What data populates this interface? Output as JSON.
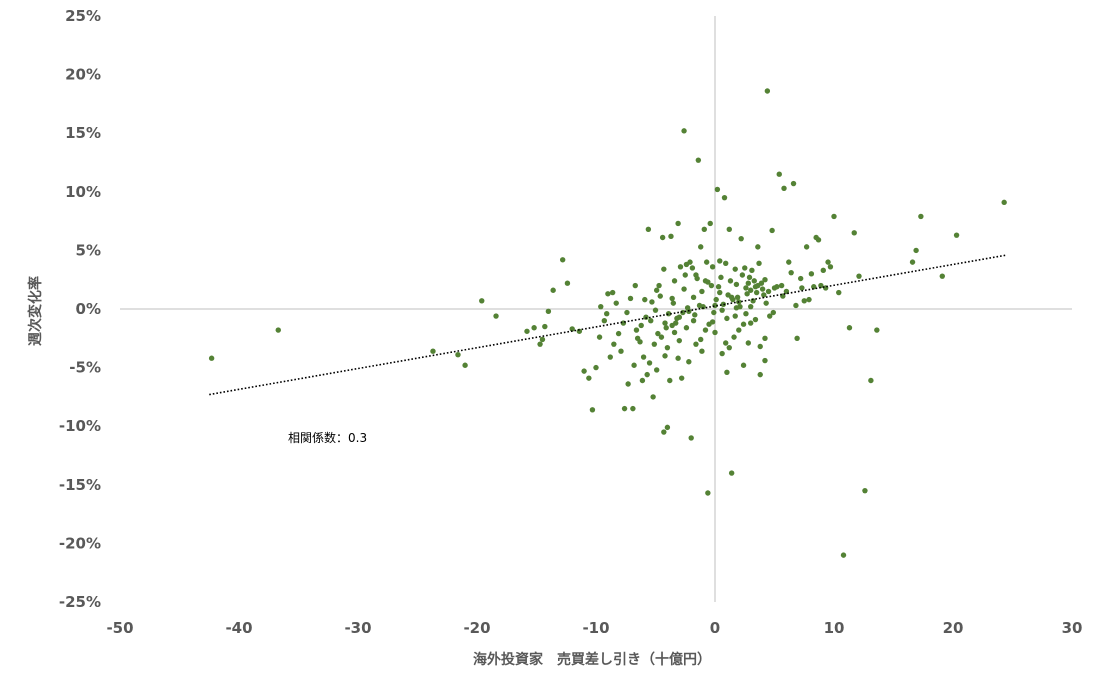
{
  "chart_data": {
    "type": "scatter",
    "title": "",
    "xlabel": "海外投資家　売買差し引き（十億円）",
    "ylabel": "週次変化率",
    "xlim": [
      -50,
      30
    ],
    "ylim": [
      -25,
      25
    ],
    "x_ticks": [
      "-50",
      "-40",
      "-30",
      "-20",
      "-10",
      "0",
      "10",
      "20",
      "30"
    ],
    "y_ticks": [
      "25%",
      "20%",
      "15%",
      "10%",
      "5%",
      "0%",
      "-5%",
      "-10%",
      "-15%",
      "-20%",
      "-25%"
    ],
    "grid": false,
    "legend": "none",
    "point_color": "#548235",
    "axis_color": "#bfbfbf",
    "trendline": {
      "style": "dotted",
      "color": "#000000",
      "from": [
        -42.5,
        -7.3
      ],
      "to": [
        24.5,
        4.6
      ]
    },
    "annotation": "相関係数：0.3",
    "points": [
      [
        -42.3,
        -4.2
      ],
      [
        -36.7,
        -1.8
      ],
      [
        -23.7,
        -3.6
      ],
      [
        -21.6,
        -3.9
      ],
      [
        -21.0,
        -4.8
      ],
      [
        -19.6,
        0.7
      ],
      [
        -18.4,
        -0.6
      ],
      [
        -15.8,
        -1.9
      ],
      [
        -15.2,
        -1.6
      ],
      [
        -14.7,
        -3.0
      ],
      [
        -14.5,
        -2.6
      ],
      [
        -14.3,
        -1.5
      ],
      [
        -14.0,
        -0.2
      ],
      [
        -13.6,
        1.6
      ],
      [
        -12.8,
        4.2
      ],
      [
        -12.4,
        2.2
      ],
      [
        -12.0,
        -1.7
      ],
      [
        -11.4,
        -1.9
      ],
      [
        -11.0,
        -5.3
      ],
      [
        -10.6,
        -5.9
      ],
      [
        -10.3,
        -8.6
      ],
      [
        -10.0,
        -5.0
      ],
      [
        -9.7,
        -2.4
      ],
      [
        -9.3,
        -1.0
      ],
      [
        -9.0,
        1.3
      ],
      [
        -8.8,
        -4.1
      ],
      [
        -8.6,
        1.4
      ],
      [
        -8.3,
        0.5
      ],
      [
        -7.9,
        -3.6
      ],
      [
        -7.6,
        -8.5
      ],
      [
        -7.3,
        -6.4
      ],
      [
        -6.9,
        -8.5
      ],
      [
        -6.7,
        2.0
      ],
      [
        -6.5,
        -2.5
      ],
      [
        -6.2,
        -1.4
      ],
      [
        -6.0,
        -4.1
      ],
      [
        -5.7,
        -5.6
      ],
      [
        -5.5,
        -4.6
      ],
      [
        -5.3,
        0.6
      ],
      [
        -5.1,
        -3.0
      ],
      [
        -4.9,
        -5.2
      ],
      [
        -4.7,
        2.0
      ],
      [
        -4.5,
        -2.4
      ],
      [
        -4.3,
        -10.5
      ],
      [
        -4.2,
        -4.0
      ],
      [
        -4.0,
        -10.1
      ],
      [
        -3.8,
        -6.1
      ],
      [
        -3.6,
        -1.4
      ],
      [
        -3.4,
        -2.0
      ],
      [
        -3.2,
        -0.8
      ],
      [
        -3.0,
        -2.7
      ],
      [
        -2.8,
        -5.9
      ],
      [
        -2.6,
        15.2
      ],
      [
        -2.4,
        3.8
      ],
      [
        -2.2,
        -0.2
      ],
      [
        -2.0,
        -11.0
      ],
      [
        -1.8,
        -1.0
      ],
      [
        -1.6,
        -3.0
      ],
      [
        -1.4,
        12.7
      ],
      [
        -1.2,
        5.3
      ],
      [
        -1.0,
        0.2
      ],
      [
        -0.8,
        -1.8
      ],
      [
        -0.6,
        -15.7
      ],
      [
        -0.4,
        7.3
      ],
      [
        -0.2,
        3.6
      ],
      [
        0.0,
        -2.0
      ],
      [
        0.2,
        10.2
      ],
      [
        0.4,
        1.4
      ],
      [
        0.6,
        -0.1
      ],
      [
        0.8,
        9.5
      ],
      [
        1.0,
        -5.4
      ],
      [
        1.2,
        6.8
      ],
      [
        1.4,
        -14.0
      ],
      [
        1.6,
        -2.4
      ],
      [
        1.8,
        2.1
      ],
      [
        2.0,
        0.6
      ],
      [
        2.2,
        6.0
      ],
      [
        2.4,
        -4.8
      ],
      [
        2.6,
        1.8
      ],
      [
        2.8,
        2.2
      ],
      [
        3.0,
        -1.2
      ],
      [
        3.2,
        0.7
      ],
      [
        3.4,
        1.9
      ],
      [
        3.6,
        5.3
      ],
      [
        3.8,
        -5.6
      ],
      [
        4.0,
        1.7
      ],
      [
        4.2,
        2.5
      ],
      [
        4.4,
        18.6
      ],
      [
        4.6,
        -0.6
      ],
      [
        4.8,
        6.7
      ],
      [
        5.0,
        1.8
      ],
      [
        5.4,
        11.5
      ],
      [
        5.8,
        10.3
      ],
      [
        6.2,
        4.0
      ],
      [
        6.6,
        10.7
      ],
      [
        6.9,
        -2.5
      ],
      [
        7.3,
        1.8
      ],
      [
        7.7,
        5.3
      ],
      [
        8.1,
        3.0
      ],
      [
        8.5,
        6.1
      ],
      [
        8.9,
        2.0
      ],
      [
        9.3,
        1.8
      ],
      [
        9.7,
        3.6
      ],
      [
        10.0,
        7.9
      ],
      [
        10.4,
        1.4
      ],
      [
        10.8,
        -21.0
      ],
      [
        11.3,
        -1.6
      ],
      [
        11.7,
        6.5
      ],
      [
        12.1,
        2.8
      ],
      [
        12.6,
        -15.5
      ],
      [
        13.1,
        -6.1
      ],
      [
        13.6,
        -1.8
      ],
      [
        16.6,
        4.0
      ],
      [
        16.9,
        5.0
      ],
      [
        17.3,
        7.9
      ],
      [
        19.1,
        2.8
      ],
      [
        20.3,
        6.3
      ],
      [
        24.3,
        9.1
      ],
      [
        -5.6,
        6.8
      ],
      [
        -4.4,
        6.1
      ],
      [
        -3.7,
        6.2
      ],
      [
        -3.1,
        7.3
      ],
      [
        -2.9,
        3.6
      ],
      [
        -2.5,
        2.9
      ],
      [
        -2.1,
        4.0
      ],
      [
        -1.9,
        3.5
      ],
      [
        -1.5,
        2.6
      ],
      [
        -1.1,
        1.5
      ],
      [
        -0.9,
        6.8
      ],
      [
        -0.7,
        4.0
      ],
      [
        -0.3,
        2.0
      ],
      [
        0.3,
        1.9
      ],
      [
        0.5,
        2.7
      ],
      [
        0.9,
        3.9
      ],
      [
        1.1,
        1.2
      ],
      [
        1.3,
        2.4
      ],
      [
        1.5,
        0.8
      ],
      [
        1.7,
        3.4
      ],
      [
        1.9,
        1.0
      ],
      [
        2.1,
        0.2
      ],
      [
        2.3,
        2.9
      ],
      [
        2.5,
        3.5
      ],
      [
        2.7,
        1.3
      ],
      [
        2.9,
        2.7
      ],
      [
        3.1,
        3.3
      ],
      [
        3.3,
        2.4
      ],
      [
        3.5,
        1.4
      ],
      [
        3.7,
        3.9
      ],
      [
        3.9,
        2.2
      ],
      [
        4.1,
        1.2
      ],
      [
        4.3,
        0.5
      ],
      [
        4.5,
        1.5
      ],
      [
        5.2,
        1.9
      ],
      [
        5.6,
        2.0
      ],
      [
        6.0,
        1.5
      ],
      [
        6.4,
        3.1
      ],
      [
        6.8,
        0.3
      ],
      [
        7.2,
        2.6
      ],
      [
        7.5,
        0.7
      ],
      [
        7.9,
        0.8
      ],
      [
        8.3,
        1.9
      ],
      [
        8.7,
        5.9
      ],
      [
        9.1,
        3.3
      ],
      [
        9.5,
        4.0
      ],
      [
        -9.6,
        0.2
      ],
      [
        -9.1,
        -0.4
      ],
      [
        -8.5,
        -3.0
      ],
      [
        -8.1,
        -2.1
      ],
      [
        -7.7,
        -1.2
      ],
      [
        -7.1,
        0.9
      ],
      [
        -6.8,
        -4.8
      ],
      [
        -6.3,
        -2.8
      ],
      [
        -5.9,
        0.8
      ],
      [
        -5.4,
        -1.0
      ],
      [
        -5.0,
        -0.1
      ],
      [
        -4.8,
        -2.1
      ],
      [
        -4.6,
        1.1
      ],
      [
        -4.1,
        -1.6
      ],
      [
        -3.9,
        -0.4
      ],
      [
        -3.5,
        0.5
      ],
      [
        -3.3,
        -1.2
      ],
      [
        -2.7,
        -0.3
      ],
      [
        -2.3,
        0.1
      ],
      [
        -1.7,
        -0.5
      ],
      [
        -1.3,
        0.3
      ],
      [
        -0.5,
        -1.3
      ],
      [
        -0.1,
        -0.3
      ],
      [
        0.1,
        0.8
      ],
      [
        0.7,
        0.4
      ],
      [
        1.0,
        -0.8
      ],
      [
        1.4,
        1.0
      ],
      [
        2.0,
        -1.8
      ],
      [
        2.6,
        -0.4
      ],
      [
        3.0,
        0.2
      ],
      [
        3.4,
        -0.9
      ],
      [
        3.8,
        -3.2
      ],
      [
        4.2,
        -2.5
      ],
      [
        4.9,
        -0.3
      ],
      [
        5.7,
        1.1
      ],
      [
        -4.2,
        -1.2
      ],
      [
        -3.6,
        0.9
      ],
      [
        -3.0,
        -0.7
      ],
      [
        -2.4,
        -1.6
      ],
      [
        -1.8,
        1.0
      ],
      [
        -1.2,
        -2.6
      ],
      [
        -0.6,
        2.3
      ],
      [
        0.0,
        0.3
      ],
      [
        0.6,
        -3.8
      ],
      [
        1.2,
        -3.3
      ],
      [
        1.8,
        0.1
      ],
      [
        2.4,
        -1.3
      ],
      [
        3.0,
        1.6
      ],
      [
        3.6,
        2.0
      ],
      [
        4.2,
        -4.4
      ],
      [
        -6.1,
        -6.1
      ],
      [
        -5.2,
        -7.5
      ],
      [
        -4.0,
        -3.3
      ],
      [
        -3.1,
        -4.2
      ],
      [
        -2.2,
        -4.5
      ],
      [
        -1.1,
        -3.6
      ],
      [
        -0.2,
        -1.1
      ],
      [
        0.9,
        -2.9
      ],
      [
        1.7,
        -0.6
      ],
      [
        2.8,
        -2.9
      ],
      [
        -7.4,
        -0.3
      ],
      [
        -6.6,
        -1.8
      ],
      [
        -5.8,
        -0.7
      ],
      [
        -4.9,
        1.6
      ],
      [
        -4.3,
        3.4
      ],
      [
        -3.4,
        2.4
      ],
      [
        -2.6,
        1.7
      ],
      [
        -1.6,
        2.9
      ],
      [
        -0.8,
        2.4
      ],
      [
        0.4,
        4.1
      ]
    ]
  }
}
